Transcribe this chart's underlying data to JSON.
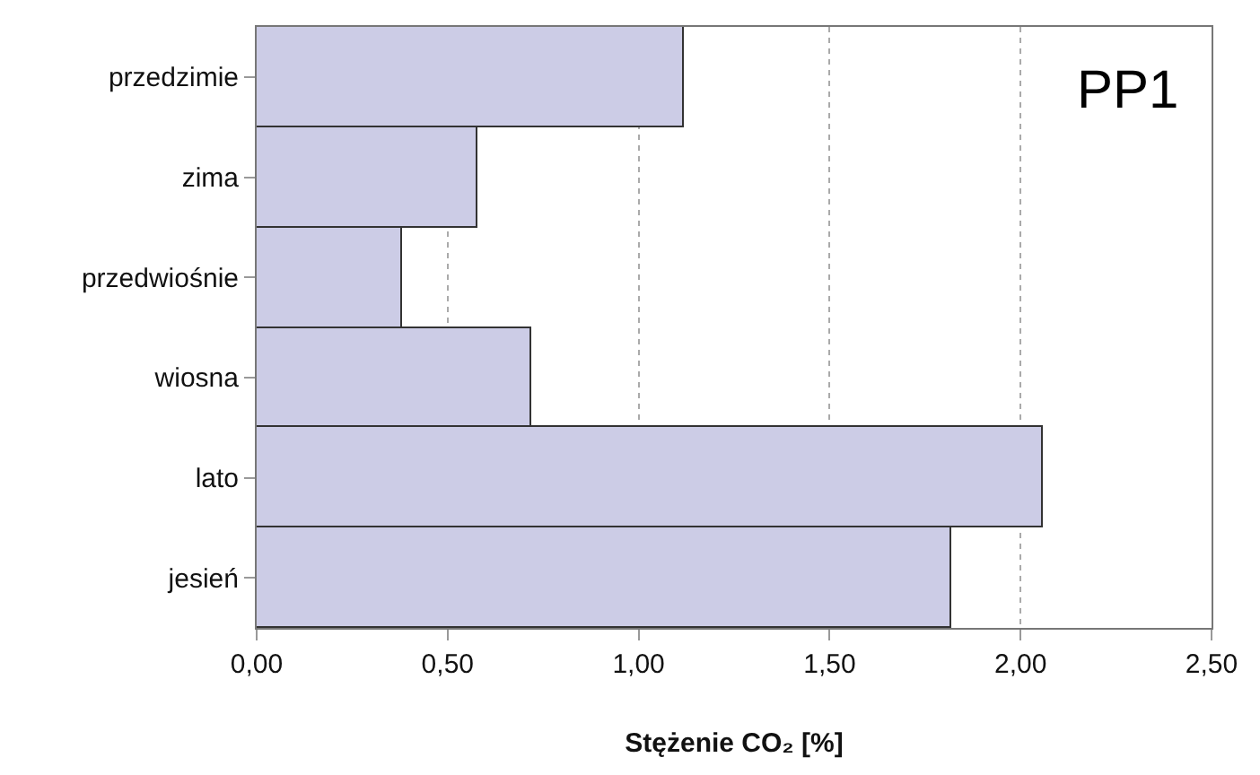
{
  "chart_data": {
    "type": "bar",
    "orientation": "horizontal",
    "categories": [
      "przedzimie",
      "zima",
      "przedwiośnie",
      "wiosna",
      "lato",
      "jesień"
    ],
    "values": [
      1.12,
      0.58,
      0.38,
      0.72,
      2.06,
      1.82
    ],
    "color": "#cccce6",
    "xlim": [
      0,
      2.5
    ],
    "xticks": [
      {
        "value": 0,
        "label": "0,00"
      },
      {
        "value": 0.5,
        "label": "0,50"
      },
      {
        "value": 1,
        "label": "1,00"
      },
      {
        "value": 1.5,
        "label": "1,50"
      },
      {
        "value": 2,
        "label": "2,00"
      },
      {
        "value": 2.5,
        "label": "2,50"
      }
    ],
    "xlabel": "Stężenie CO₂ [%]",
    "grid": "x",
    "annotations": [
      "PP1"
    ]
  }
}
